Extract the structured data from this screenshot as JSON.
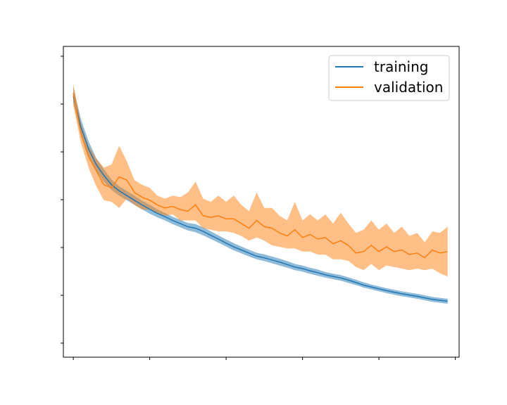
{
  "chart_data": {
    "type": "line",
    "title": "",
    "xlabel": "",
    "ylabel": "",
    "x_tick_count": 6,
    "y_tick_count": 7,
    "xlim": [
      -1.3,
      50.5
    ],
    "ylim": [
      0.0,
      1.0
    ],
    "legend_placement": "top-right",
    "grid": false,
    "x": [
      0,
      1,
      2,
      3,
      4,
      5,
      6,
      7,
      8,
      9,
      10,
      11,
      12,
      13,
      14,
      15,
      16,
      17,
      18,
      19,
      20,
      21,
      22,
      23,
      24,
      25,
      26,
      27,
      28,
      29,
      30,
      31,
      32,
      33,
      34,
      35,
      36,
      37,
      38,
      39,
      40,
      41,
      42,
      43,
      44,
      45,
      46,
      47,
      48,
      49
    ],
    "series": [
      {
        "name": "training",
        "color": "#1f77b4",
        "band_alpha": 0.5,
        "values": [
          0.84,
          0.74,
          0.67,
          0.62,
          0.585,
          0.555,
          0.535,
          0.52,
          0.505,
          0.49,
          0.476,
          0.463,
          0.452,
          0.44,
          0.43,
          0.42,
          0.415,
          0.405,
          0.392,
          0.38,
          0.367,
          0.355,
          0.345,
          0.335,
          0.325,
          0.32,
          0.313,
          0.306,
          0.298,
          0.29,
          0.285,
          0.278,
          0.272,
          0.265,
          0.26,
          0.255,
          0.248,
          0.24,
          0.232,
          0.226,
          0.22,
          0.214,
          0.209,
          0.204,
          0.2,
          0.196,
          0.191,
          0.186,
          0.183,
          0.18
        ],
        "lower": [
          0.82,
          0.715,
          0.645,
          0.6,
          0.565,
          0.538,
          0.52,
          0.505,
          0.49,
          0.476,
          0.462,
          0.45,
          0.44,
          0.428,
          0.418,
          0.408,
          0.402,
          0.392,
          0.38,
          0.368,
          0.356,
          0.344,
          0.334,
          0.324,
          0.315,
          0.309,
          0.302,
          0.295,
          0.288,
          0.28,
          0.275,
          0.268,
          0.262,
          0.256,
          0.251,
          0.246,
          0.239,
          0.232,
          0.224,
          0.218,
          0.212,
          0.206,
          0.201,
          0.196,
          0.192,
          0.188,
          0.183,
          0.178,
          0.175,
          0.172
        ],
        "upper": [
          0.87,
          0.765,
          0.695,
          0.64,
          0.605,
          0.572,
          0.55,
          0.535,
          0.52,
          0.504,
          0.49,
          0.476,
          0.464,
          0.452,
          0.442,
          0.432,
          0.428,
          0.418,
          0.405,
          0.392,
          0.379,
          0.367,
          0.356,
          0.346,
          0.336,
          0.331,
          0.324,
          0.317,
          0.309,
          0.3,
          0.295,
          0.288,
          0.282,
          0.274,
          0.269,
          0.264,
          0.257,
          0.249,
          0.241,
          0.234,
          0.228,
          0.222,
          0.217,
          0.212,
          0.208,
          0.204,
          0.199,
          0.194,
          0.191,
          0.188
        ]
      },
      {
        "name": "validation",
        "color": "#ff7f0e",
        "band_alpha": 0.5,
        "values": [
          0.85,
          0.72,
          0.645,
          0.6,
          0.555,
          0.545,
          0.58,
          0.57,
          0.53,
          0.515,
          0.505,
          0.49,
          0.48,
          0.485,
          0.475,
          0.47,
          0.49,
          0.455,
          0.45,
          0.455,
          0.445,
          0.445,
          0.43,
          0.415,
          0.44,
          0.42,
          0.415,
          0.4,
          0.39,
          0.41,
          0.385,
          0.395,
          0.38,
          0.385,
          0.365,
          0.375,
          0.36,
          0.335,
          0.34,
          0.36,
          0.34,
          0.355,
          0.34,
          0.345,
          0.33,
          0.335,
          0.32,
          0.345,
          0.335,
          0.34
        ],
        "lower": [
          0.81,
          0.69,
          0.61,
          0.55,
          0.505,
          0.5,
          0.48,
          0.51,
          0.49,
          0.475,
          0.475,
          0.465,
          0.455,
          0.46,
          0.44,
          0.44,
          0.44,
          0.415,
          0.41,
          0.405,
          0.405,
          0.4,
          0.39,
          0.375,
          0.385,
          0.375,
          0.36,
          0.355,
          0.35,
          0.35,
          0.34,
          0.34,
          0.33,
          0.33,
          0.315,
          0.315,
          0.31,
          0.29,
          0.28,
          0.3,
          0.28,
          0.295,
          0.29,
          0.285,
          0.28,
          0.285,
          0.28,
          0.285,
          0.27,
          0.26
        ],
        "upper": [
          0.88,
          0.75,
          0.68,
          0.64,
          0.61,
          0.62,
          0.68,
          0.63,
          0.57,
          0.555,
          0.545,
          0.52,
          0.51,
          0.52,
          0.515,
          0.53,
          0.565,
          0.51,
          0.5,
          0.52,
          0.5,
          0.52,
          0.49,
          0.47,
          0.53,
          0.48,
          0.48,
          0.455,
          0.44,
          0.5,
          0.44,
          0.46,
          0.44,
          0.46,
          0.43,
          0.465,
          0.43,
          0.4,
          0.41,
          0.44,
          0.41,
          0.43,
          0.4,
          0.42,
          0.39,
          0.4,
          0.37,
          0.405,
          0.4,
          0.42
        ]
      }
    ]
  }
}
